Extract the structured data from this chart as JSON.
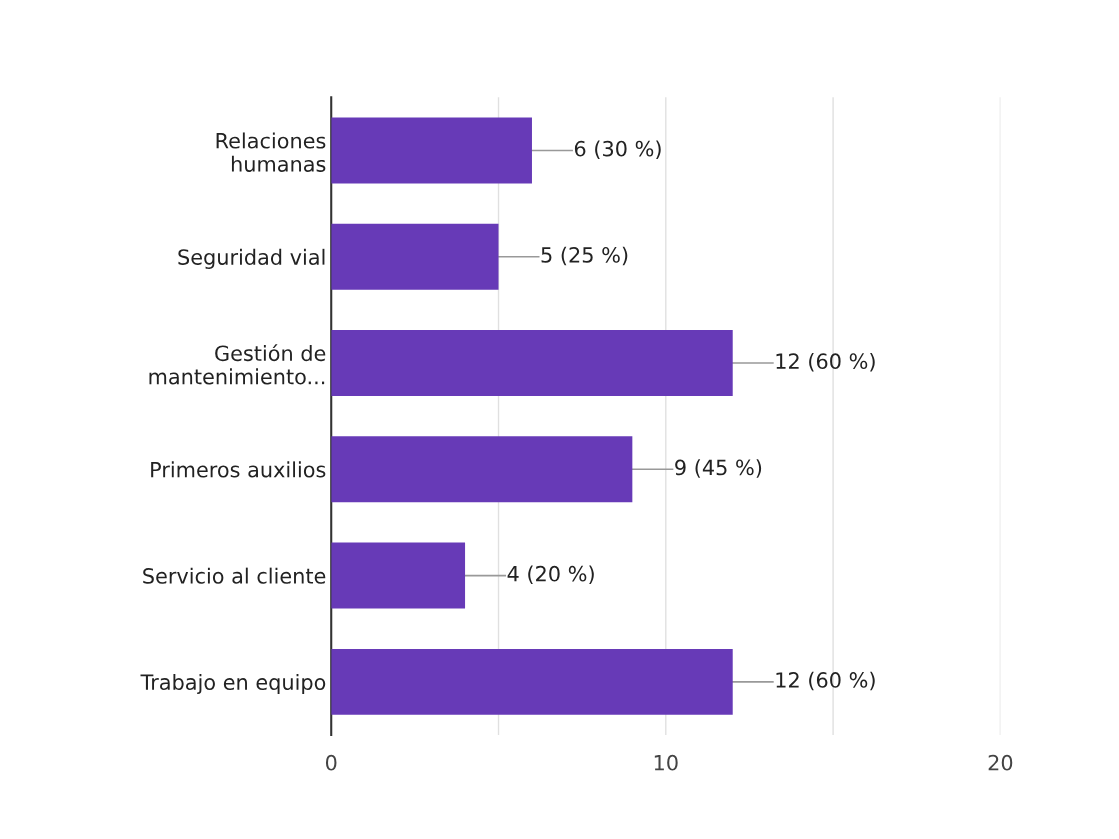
{
  "chart_data": {
    "type": "bar",
    "orientation": "horizontal",
    "categories": [
      "Relaciones\nhumanas",
      "Seguridad vial",
      "Gestión de\nmantenimiento...",
      "Primeros auxilios",
      "Servicio al cliente",
      "Trabajo en equipo"
    ],
    "values": [
      6,
      5,
      12,
      9,
      4,
      12
    ],
    "value_labels": [
      "6 (30 %)",
      "5 (25 %)",
      "12 (60 %)",
      "9 (45 %)",
      "4 (20 %)",
      "12 (60 %)"
    ],
    "color": "#673ab7",
    "xlim": [
      0,
      20
    ],
    "xticks": [
      0,
      {
        "value": 5,
        "label": null
      },
      10,
      {
        "value": 15,
        "label": null
      },
      20
    ],
    "grid": "x",
    "legend": false
  }
}
